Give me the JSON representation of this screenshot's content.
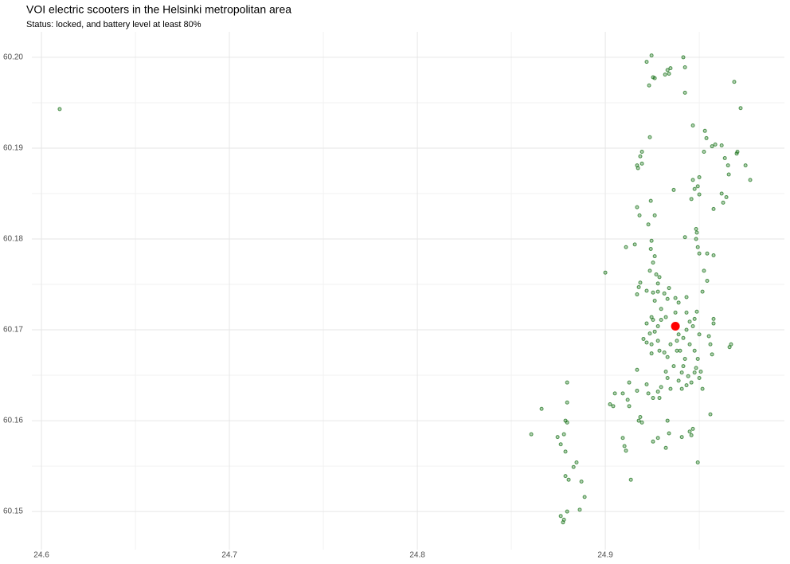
{
  "chart_data": {
    "type": "scatter",
    "title": "VOI electric scooters in the Helsinki metropolitan area",
    "subtitle": "Status: locked, and battery level at least 80%",
    "xlim": [
      24.5949,
      24.9953
    ],
    "ylim": [
      60.1458,
      60.2028
    ],
    "xticks": [
      24.6,
      24.7,
      24.8,
      24.9
    ],
    "yticks": [
      60.15,
      60.16,
      60.17,
      60.18,
      60.19,
      {
        "value": 60.2,
        "label": "60.20"
      }
    ],
    "xminor": [
      24.65,
      24.75,
      24.85,
      24.95
    ],
    "yminor": [
      60.155,
      60.165,
      60.175,
      60.185,
      60.195
    ],
    "grid": true,
    "color": "#006400",
    "x": [
      24.9246,
      24.922,
      24.9254,
      24.9263,
      24.9331,
      24.9339,
      24.9318,
      24.9347,
      24.9415,
      24.9424,
      24.9233,
      24.9424,
      24.9686,
      24.972,
      24.6097,
      24.9466,
      24.953,
      24.9538,
      24.9568,
      24.9525,
      24.9585,
      24.9619,
      24.9703,
      24.9699,
      24.9636,
      24.9746,
      24.9653,
      24.9771,
      24.9657,
      24.9466,
      24.95,
      24.9492,
      24.95,
      24.9458,
      24.9619,
      24.9627,
      24.9644,
      24.9576,
      24.9475,
      24.9364,
      24.9242,
      24.9169,
      24.9182,
      24.9263,
      24.9229,
      24.9195,
      24.9186,
      24.9237,
      24.9169,
      24.9174,
      24.9195,
      24.9483,
      24.9487,
      24.9483,
      24.9492,
      24.95,
      24.9542,
      24.9576,
      24.9424,
      24.9157,
      24.911,
      24.9246,
      24.9242,
      24.9263,
      24.9254,
      24.9237,
      24.9271,
      24.928,
      24.9288,
      24.9186,
      24.9178,
      24.9169,
      24.922,
      24.9254,
      24.928,
      24.9314,
      24.9339,
      24.9331,
      24.9373,
      24.939,
      24.9432,
      24.9525,
      24.9542,
      24.9517,
      24.9487,
      24.9432,
      24.9373,
      24.9322,
      24.9297,
      24.928,
      24.9254,
      24.922,
      24.9246,
      24.9237,
      24.9203,
      24.9246,
      24.928,
      24.9288,
      24.9314,
      24.9331,
      24.9347,
      24.9381,
      24.939,
      24.9398,
      24.9415,
      24.9432,
      24.9466,
      24.9449,
      24.9475,
      24.95,
      24.9449,
      24.9475,
      24.9492,
      24.9483,
      24.9508,
      24.9475,
      24.9441,
      24.9415,
      24.9407,
      24.939,
      24.9407,
      24.9432,
      24.9458,
      24.95,
      24.9517,
      24.9576,
      24.9576,
      24.9551,
      24.9559,
      24.9568,
      24.9669,
      24.9661,
      24.9322,
      24.9331,
      24.9347,
      24.9297,
      24.928,
      24.9254,
      24.9288,
      24.922,
      24.9229,
      24.9169,
      24.9127,
      24.9093,
      24.9051,
      24.9025,
      24.9042,
      24.9119,
      24.9178,
      24.9195,
      24.9186,
      24.9331,
      24.928,
      24.9339,
      24.9322,
      24.9407,
      24.9449,
      24.9466,
      24.9458,
      24.9559,
      24.9492,
      24.9254,
      24.9093,
      24.9102,
      24.911,
      24.9127,
      24.9136,
      24.9169,
      24.9246,
      24.9263,
      24.922,
      24.9297,
      24.9263,
      24.9381,
      24.9424,
      24.9364,
      24.8661,
      24.8606,
      24.8746,
      24.8763,
      24.878,
      24.8788,
      24.8797,
      24.8797,
      24.8797,
      24.8788,
      24.8831,
      24.8847,
      24.8788,
      24.8805,
      24.8873,
      24.889,
      24.8864,
      24.8797,
      24.8763,
      24.878,
      24.8775,
      24.9
    ],
    "y": [
      60.2002,
      60.1995,
      60.1978,
      60.1977,
      60.1986,
      60.1982,
      60.1981,
      60.1988,
      60.2,
      60.1989,
      60.1969,
      60.1961,
      60.1973,
      60.1944,
      60.1943,
      60.1925,
      60.1919,
      60.1911,
      60.1902,
      60.1896,
      60.1904,
      60.1903,
      60.1896,
      60.1894,
      60.1889,
      60.1881,
      60.1881,
      60.1865,
      60.1871,
      60.1865,
      60.1868,
      60.1858,
      60.1849,
      60.1844,
      60.185,
      60.184,
      60.1846,
      60.1833,
      60.1855,
      60.1854,
      60.1842,
      60.1835,
      60.1826,
      60.1826,
      60.1816,
      60.1896,
      60.1891,
      60.1912,
      60.1881,
      60.1878,
      60.1883,
      60.1811,
      60.1807,
      60.18,
      60.1791,
      60.1784,
      60.1784,
      60.1782,
      60.1802,
      60.1794,
      60.1791,
      60.1798,
      60.1789,
      60.1781,
      60.1774,
      60.1765,
      60.1761,
      60.1751,
      60.1758,
      60.1752,
      60.1747,
      60.1739,
      60.1743,
      60.1741,
      60.1742,
      60.174,
      60.1746,
      60.1734,
      60.1735,
      60.173,
      60.1736,
      60.1765,
      60.1754,
      60.1742,
      60.172,
      60.1719,
      60.1719,
      60.1714,
      60.1711,
      60.1704,
      60.1711,
      60.1707,
      60.1714,
      60.1696,
      60.169,
      60.1684,
      60.1688,
      60.1677,
      60.1675,
      60.167,
      60.1684,
      60.1688,
      60.1695,
      60.1677,
      60.1691,
      60.17,
      60.1704,
      60.1709,
      60.1712,
      60.1695,
      60.1684,
      60.1677,
      60.1668,
      60.1658,
      60.1654,
      60.1653,
      60.1649,
      60.166,
      60.1653,
      60.1644,
      60.1635,
      60.1639,
      60.1642,
      60.1647,
      60.1635,
      60.1707,
      60.1712,
      60.1693,
      60.1684,
      60.1673,
      60.1684,
      60.1681,
      60.1654,
      60.1647,
      60.1635,
      60.1637,
      60.1632,
      60.1625,
      60.1625,
      60.164,
      60.163,
      60.1633,
      60.1642,
      60.163,
      60.163,
      60.1618,
      60.1616,
      60.1623,
      60.16,
      60.1598,
      60.1604,
      60.16,
      60.1581,
      60.1586,
      60.157,
      60.1582,
      60.1588,
      60.1591,
      60.1584,
      60.1607,
      60.1554,
      60.1577,
      60.1581,
      60.1572,
      60.1567,
      60.1616,
      60.1535,
      60.1656,
      60.1674,
      60.1698,
      60.1686,
      60.1723,
      60.1732,
      60.1677,
      60.1668,
      60.166,
      60.1613,
      60.1585,
      60.1582,
      60.1574,
      60.1585,
      60.16,
      60.1598,
      60.162,
      60.1642,
      60.1566,
      60.1549,
      60.1554,
      60.1539,
      60.1535,
      60.1533,
      60.1516,
      60.1502,
      60.15,
      60.1495,
      60.1491,
      60.1488,
      60.1763
    ],
    "highlight": {
      "x": 24.9373,
      "y": 60.1704,
      "color": "#ff0000"
    }
  }
}
